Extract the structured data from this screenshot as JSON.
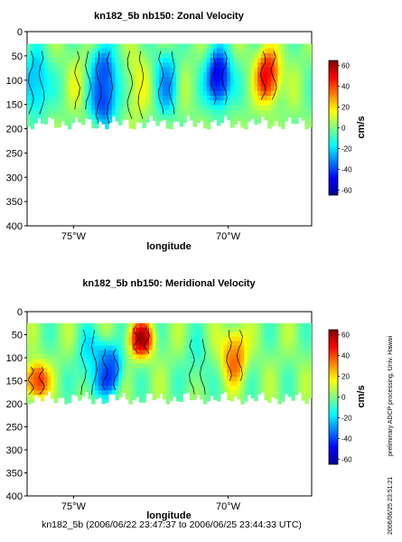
{
  "chart_data": [
    {
      "type": "heatmap",
      "title": "kn182_5b nb150: Zonal Velocity",
      "xlabel": "longitude",
      "ylabel": "",
      "x_ticks": [
        "75°W",
        "70°W"
      ],
      "y_ticks": [
        0,
        50,
        100,
        150,
        200,
        250,
        300,
        350,
        400
      ],
      "ylim": [
        400,
        0
      ],
      "xlim": [
        -76.5,
        -67.3
      ],
      "colorbar": {
        "label": "cm/s",
        "ticks": [
          60,
          40,
          20,
          0,
          -20,
          -40,
          -60
        ],
        "range": [
          -65,
          65
        ],
        "colormap": "jet"
      },
      "data_depth_range": [
        25,
        200
      ],
      "features": [
        {
          "lon": -76.2,
          "value": -30,
          "depth": [
            40,
            170
          ]
        },
        {
          "lon": -74.7,
          "value": 10,
          "depth": [
            40,
            160
          ]
        },
        {
          "lon": -74.0,
          "value": -50,
          "depth": [
            40,
            190
          ]
        },
        {
          "lon": -73.0,
          "value": 15,
          "depth": [
            40,
            180
          ]
        },
        {
          "lon": -72.0,
          "value": -25,
          "depth": [
            40,
            170
          ]
        },
        {
          "lon": -70.3,
          "value": -55,
          "depth": [
            40,
            150
          ]
        },
        {
          "lon": -68.7,
          "value": 50,
          "depth": [
            40,
            140
          ]
        }
      ]
    },
    {
      "type": "heatmap",
      "title": "kn182_5b nb150: Meridional Velocity",
      "xlabel": "longitude",
      "ylabel": "",
      "x_ticks": [
        "75°W",
        "70°W"
      ],
      "y_ticks": [
        0,
        50,
        100,
        150,
        200,
        250,
        300,
        350,
        400
      ],
      "ylim": [
        400,
        0
      ],
      "xlim": [
        -76.5,
        -67.3
      ],
      "colorbar": {
        "label": "cm/s",
        "ticks": [
          60,
          40,
          20,
          0,
          -20,
          -40,
          -60
        ],
        "range": [
          -65,
          65
        ],
        "colormap": "jet"
      },
      "data_depth_range": [
        25,
        200
      ],
      "features": [
        {
          "lon": -76.2,
          "value": 45,
          "depth": [
            120,
            180
          ]
        },
        {
          "lon": -74.5,
          "value": -15,
          "depth": [
            40,
            180
          ]
        },
        {
          "lon": -73.8,
          "value": -40,
          "depth": [
            80,
            170
          ]
        },
        {
          "lon": -72.8,
          "value": 55,
          "depth": [
            30,
            90
          ]
        },
        {
          "lon": -71.0,
          "value": -10,
          "depth": [
            60,
            180
          ]
        },
        {
          "lon": -69.8,
          "value": 35,
          "depth": [
            40,
            150
          ]
        }
      ]
    }
  ],
  "side_text": {
    "processing": "preliminary ADCP processing,  Univ. Hawaii",
    "timestamp": "2006/06/25 23:51:21"
  },
  "footer": "kn182_5b (2006/06/22 23:47:37 to 2006/06/25 23:44:33 UTC)"
}
